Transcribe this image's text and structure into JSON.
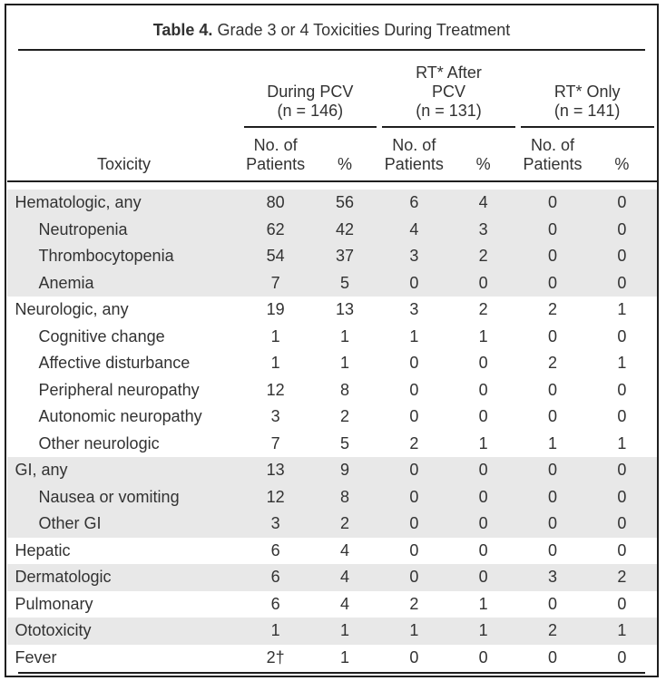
{
  "colors": {
    "row_shade": "#e8e8e8",
    "rule": "#1f1f1f",
    "text": "#323232"
  },
  "table": {
    "title": {
      "prefix": "Table 4.",
      "rest": "Grade 3 or 4 Toxicities During Treatment"
    },
    "header": {
      "toxicity_col": "Toxicity",
      "groups": [
        {
          "label": "During PCV\n(n = 146)"
        },
        {
          "label": "RT* After\nPCV\n(n = 131)"
        },
        {
          "label": "RT* Only\n(n = 141)"
        }
      ],
      "subcols": [
        "No. of\nPatients",
        "%"
      ]
    },
    "rows": [
      {
        "label": "Hematologic, any",
        "indent": false,
        "shaded": true,
        "values": [
          "80",
          "56",
          "6",
          "4",
          "0",
          "0"
        ]
      },
      {
        "label": "Neutropenia",
        "indent": true,
        "shaded": true,
        "values": [
          "62",
          "42",
          "4",
          "3",
          "0",
          "0"
        ]
      },
      {
        "label": "Thrombocytopenia",
        "indent": true,
        "shaded": true,
        "values": [
          "54",
          "37",
          "3",
          "2",
          "0",
          "0"
        ]
      },
      {
        "label": "Anemia",
        "indent": true,
        "shaded": true,
        "values": [
          "7",
          "5",
          "0",
          "0",
          "0",
          "0"
        ]
      },
      {
        "label": "Neurologic, any",
        "indent": false,
        "shaded": false,
        "values": [
          "19",
          "13",
          "3",
          "2",
          "2",
          "1"
        ]
      },
      {
        "label": "Cognitive change",
        "indent": true,
        "shaded": false,
        "values": [
          "1",
          "1",
          "1",
          "1",
          "0",
          "0"
        ]
      },
      {
        "label": "Affective disturbance",
        "indent": true,
        "shaded": false,
        "values": [
          "1",
          "1",
          "0",
          "0",
          "2",
          "1"
        ]
      },
      {
        "label": "Peripheral neuropathy",
        "indent": true,
        "shaded": false,
        "values": [
          "12",
          "8",
          "0",
          "0",
          "0",
          "0"
        ]
      },
      {
        "label": "Autonomic neuropathy",
        "indent": true,
        "shaded": false,
        "values": [
          "3",
          "2",
          "0",
          "0",
          "0",
          "0"
        ]
      },
      {
        "label": "Other neurologic",
        "indent": true,
        "shaded": false,
        "values": [
          "7",
          "5",
          "2",
          "1",
          "1",
          "1"
        ]
      },
      {
        "label": "GI, any",
        "indent": false,
        "shaded": true,
        "values": [
          "13",
          "9",
          "0",
          "0",
          "0",
          "0"
        ]
      },
      {
        "label": "Nausea or vomiting",
        "indent": true,
        "shaded": true,
        "values": [
          "12",
          "8",
          "0",
          "0",
          "0",
          "0"
        ]
      },
      {
        "label": "Other GI",
        "indent": true,
        "shaded": true,
        "values": [
          "3",
          "2",
          "0",
          "0",
          "0",
          "0"
        ]
      },
      {
        "label": "Hepatic",
        "indent": false,
        "shaded": false,
        "values": [
          "6",
          "4",
          "0",
          "0",
          "0",
          "0"
        ]
      },
      {
        "label": "Dermatologic",
        "indent": false,
        "shaded": true,
        "values": [
          "6",
          "4",
          "0",
          "0",
          "3",
          "2"
        ]
      },
      {
        "label": "Pulmonary",
        "indent": false,
        "shaded": false,
        "values": [
          "6",
          "4",
          "2",
          "1",
          "0",
          "0"
        ]
      },
      {
        "label": "Ototoxicity",
        "indent": false,
        "shaded": true,
        "values": [
          "1",
          "1",
          "1",
          "1",
          "2",
          "1"
        ]
      },
      {
        "label": "Fever",
        "indent": false,
        "shaded": false,
        "values": [
          "2†",
          "1",
          "0",
          "0",
          "0",
          "0"
        ]
      }
    ]
  },
  "chart_data": {
    "type": "table",
    "title": "Table 4. Grade 3 or 4 Toxicities During Treatment",
    "column_groups": [
      "During PCV (n = 146)",
      "RT* After PCV (n = 131)",
      "RT* Only (n = 141)"
    ],
    "columns": [
      "Toxicity",
      "No. of Patients",
      "%",
      "No. of Patients",
      "%",
      "No. of Patients",
      "%"
    ],
    "rows": [
      [
        "Hematologic, any",
        80,
        56,
        6,
        4,
        0,
        0
      ],
      [
        "Neutropenia",
        62,
        42,
        4,
        3,
        0,
        0
      ],
      [
        "Thrombocytopenia",
        54,
        37,
        3,
        2,
        0,
        0
      ],
      [
        "Anemia",
        7,
        5,
        0,
        0,
        0,
        0
      ],
      [
        "Neurologic, any",
        19,
        13,
        3,
        2,
        2,
        1
      ],
      [
        "Cognitive change",
        1,
        1,
        1,
        1,
        0,
        0
      ],
      [
        "Affective disturbance",
        1,
        1,
        0,
        0,
        2,
        1
      ],
      [
        "Peripheral neuropathy",
        12,
        8,
        0,
        0,
        0,
        0
      ],
      [
        "Autonomic neuropathy",
        3,
        2,
        0,
        0,
        0,
        0
      ],
      [
        "Other neurologic",
        7,
        5,
        2,
        1,
        1,
        1
      ],
      [
        "GI, any",
        13,
        9,
        0,
        0,
        0,
        0
      ],
      [
        "Nausea or vomiting",
        12,
        8,
        0,
        0,
        0,
        0
      ],
      [
        "Other GI",
        3,
        2,
        0,
        0,
        0,
        0
      ],
      [
        "Hepatic",
        6,
        4,
        0,
        0,
        0,
        0
      ],
      [
        "Dermatologic",
        6,
        4,
        0,
        0,
        3,
        2
      ],
      [
        "Pulmonary",
        6,
        4,
        2,
        1,
        0,
        0
      ],
      [
        "Ototoxicity",
        1,
        1,
        1,
        1,
        2,
        1
      ],
      [
        "Fever",
        "2†",
        1,
        0,
        0,
        0,
        0
      ]
    ]
  }
}
